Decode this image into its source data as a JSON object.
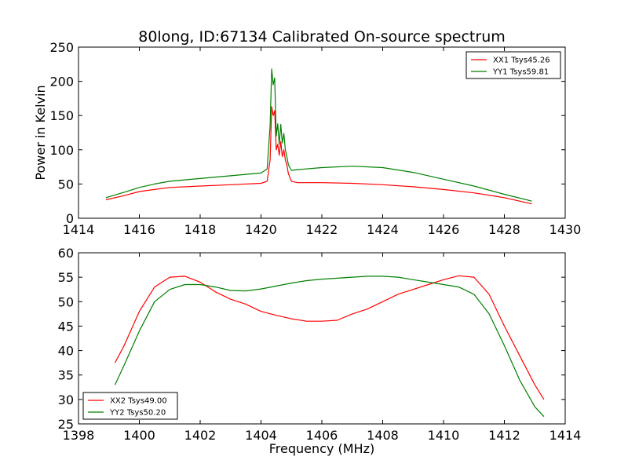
{
  "figure": {
    "title": "80long, ID:67134 Calibrated On-source spectrum",
    "background": "#ffffff"
  },
  "chart_data": [
    {
      "type": "line",
      "ylabel": "Power in Kelvin",
      "xlabel": "",
      "xlim": [
        1414,
        1430
      ],
      "ylim": [
        0,
        250
      ],
      "xticks": [
        1414,
        1416,
        1418,
        1420,
        1422,
        1424,
        1426,
        1428,
        1430
      ],
      "yticks": [
        0,
        50,
        100,
        150,
        200,
        250
      ],
      "grid": false,
      "legend_position": "top-right",
      "series": [
        {
          "name": "XX1 Tsys45.26",
          "color": "#ff0000",
          "x": [
            1414.9,
            1415.5,
            1416,
            1416.5,
            1417,
            1418,
            1419,
            1420,
            1420.2,
            1420.3,
            1420.35,
            1420.4,
            1420.45,
            1420.5,
            1420.55,
            1420.6,
            1420.65,
            1420.7,
            1420.75,
            1420.8,
            1420.85,
            1420.9,
            1421,
            1421.2,
            1422,
            1423,
            1424,
            1425,
            1426,
            1427,
            1428,
            1428.9
          ],
          "y": [
            27,
            33,
            39,
            42,
            45,
            47,
            49,
            51,
            54,
            85,
            163,
            150,
            157,
            100,
            108,
            92,
            112,
            90,
            100,
            85,
            78,
            65,
            54,
            52,
            52,
            51,
            49,
            46,
            42,
            37,
            30,
            21
          ]
        },
        {
          "name": "YY1 Tsys59.81",
          "color": "#008000",
          "x": [
            1414.9,
            1415.5,
            1416,
            1416.5,
            1417,
            1418,
            1419,
            1420,
            1420.2,
            1420.3,
            1420.35,
            1420.4,
            1420.45,
            1420.5,
            1420.55,
            1420.6,
            1420.65,
            1420.7,
            1420.75,
            1420.8,
            1420.85,
            1420.9,
            1421,
            1421.2,
            1422,
            1423,
            1424,
            1425,
            1426,
            1427,
            1428,
            1428.9
          ],
          "y": [
            30,
            38,
            45,
            50,
            54,
            58,
            62,
            66,
            72,
            135,
            218,
            195,
            205,
            120,
            138,
            108,
            137,
            110,
            124,
            100,
            90,
            78,
            70,
            71,
            74,
            76,
            74,
            67,
            57,
            47,
            35,
            25
          ]
        }
      ]
    },
    {
      "type": "line",
      "ylabel": "",
      "xlabel": "Frequency (MHz)",
      "xlim": [
        1398,
        1414
      ],
      "ylim": [
        25,
        60
      ],
      "xticks": [
        1398,
        1400,
        1402,
        1404,
        1406,
        1408,
        1410,
        1412,
        1414
      ],
      "yticks": [
        25,
        30,
        35,
        40,
        45,
        50,
        55,
        60
      ],
      "grid": false,
      "legend_position": "bottom-left",
      "series": [
        {
          "name": "XX2 Tsys49.00",
          "color": "#ff0000",
          "x": [
            1399.2,
            1399.5,
            1400,
            1400.5,
            1401,
            1401.5,
            1402,
            1402.5,
            1403,
            1403.5,
            1404,
            1404.5,
            1405,
            1405.5,
            1406,
            1406.5,
            1407,
            1407.5,
            1408,
            1408.5,
            1409,
            1409.5,
            1410,
            1410.5,
            1411,
            1411.5,
            1412,
            1412.5,
            1413,
            1413.3
          ],
          "y": [
            37.5,
            41,
            48,
            53,
            55,
            55.2,
            54,
            52,
            50.5,
            49.5,
            48,
            47.2,
            46.5,
            46,
            46,
            46.2,
            47.5,
            48.5,
            50,
            51.5,
            52.5,
            53.5,
            54.5,
            55.3,
            55,
            51.5,
            45,
            39,
            33,
            30
          ]
        },
        {
          "name": "YY2 Tsys50.20",
          "color": "#008000",
          "x": [
            1399.2,
            1399.5,
            1400,
            1400.5,
            1401,
            1401.5,
            1402,
            1402.5,
            1403,
            1403.5,
            1404,
            1404.5,
            1405,
            1405.5,
            1406,
            1406.5,
            1407,
            1407.5,
            1408,
            1408.5,
            1409,
            1409.5,
            1410,
            1410.5,
            1411,
            1411.5,
            1412,
            1412.5,
            1413,
            1413.3
          ],
          "y": [
            33,
            37,
            44,
            50,
            52.5,
            53.5,
            53.5,
            53,
            52.3,
            52.2,
            52.6,
            53.2,
            53.8,
            54.3,
            54.6,
            54.8,
            55,
            55.2,
            55.2,
            55,
            54.5,
            54,
            53.5,
            53,
            51.5,
            47.5,
            41,
            34,
            28.5,
            26.5
          ]
        }
      ]
    }
  ]
}
